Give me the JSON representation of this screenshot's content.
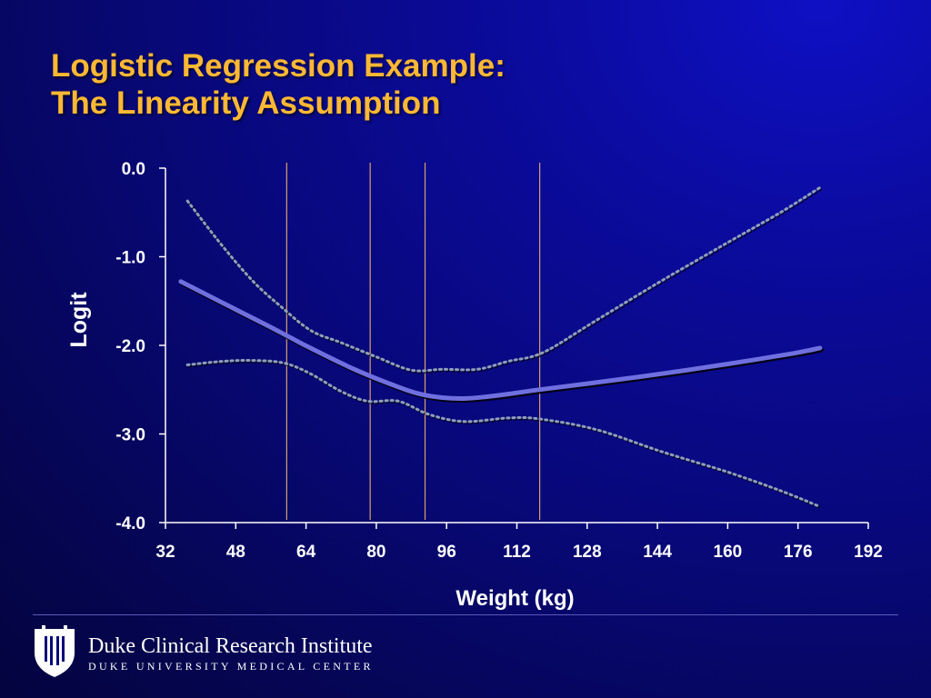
{
  "slide": {
    "title_line1": "Logistic Regression Example:",
    "title_line2": "The Linearity Assumption"
  },
  "chart_data": {
    "type": "line",
    "xlabel": "Weight (kg)",
    "ylabel": "Logit",
    "xlim": [
      32,
      192
    ],
    "ylim": [
      -4.0,
      0.0
    ],
    "x_ticks": [
      32,
      48,
      64,
      80,
      96,
      112,
      128,
      144,
      160,
      176,
      192
    ],
    "y_ticks": [
      0.0,
      -1.0,
      -2.0,
      -3.0,
      -4.0
    ],
    "y_tick_labels": [
      "0.0",
      "-1.0",
      "-2.0",
      "-3.0",
      "-4.0"
    ],
    "knots": [
      59.6,
      78.6,
      91.1,
      117.2
    ],
    "series": [
      {
        "role": "estimate",
        "style": "solid",
        "color": "#6f6fe0",
        "x": [
          35.5,
          45,
          55,
          60,
          65,
          75,
          85,
          90,
          95,
          100,
          105,
          110,
          117,
          130,
          145,
          160,
          175,
          181
        ],
        "y": [
          -1.28,
          -1.52,
          -1.77,
          -1.9,
          -2.03,
          -2.27,
          -2.47,
          -2.55,
          -2.59,
          -2.6,
          -2.58,
          -2.55,
          -2.5,
          -2.42,
          -2.32,
          -2.21,
          -2.09,
          -2.03
        ]
      },
      {
        "role": "upper-ci",
        "style": "dotted",
        "color": "#8f9fb8",
        "x": [
          37,
          45,
          52,
          58,
          65,
          72,
          80,
          88,
          95,
          103,
          110,
          118,
          130,
          145,
          160,
          172,
          181
        ],
        "y": [
          -0.37,
          -0.88,
          -1.28,
          -1.55,
          -1.83,
          -1.97,
          -2.13,
          -2.28,
          -2.27,
          -2.27,
          -2.18,
          -2.08,
          -1.72,
          -1.27,
          -0.84,
          -0.5,
          -0.22
        ]
      },
      {
        "role": "lower-ci",
        "style": "dotted",
        "color": "#8f9fb8",
        "x": [
          37,
          45,
          52,
          59,
          65,
          72,
          78,
          85,
          92,
          100,
          110,
          117,
          130,
          145,
          160,
          172,
          181
        ],
        "y": [
          -2.22,
          -2.18,
          -2.17,
          -2.2,
          -2.32,
          -2.52,
          -2.63,
          -2.63,
          -2.78,
          -2.86,
          -2.82,
          -2.83,
          -2.95,
          -3.2,
          -3.43,
          -3.64,
          -3.82
        ]
      }
    ]
  },
  "footer": {
    "institute": "Duke Clinical Research Institute",
    "subline": "DUKE UNIVERSITY MEDICAL CENTER"
  }
}
